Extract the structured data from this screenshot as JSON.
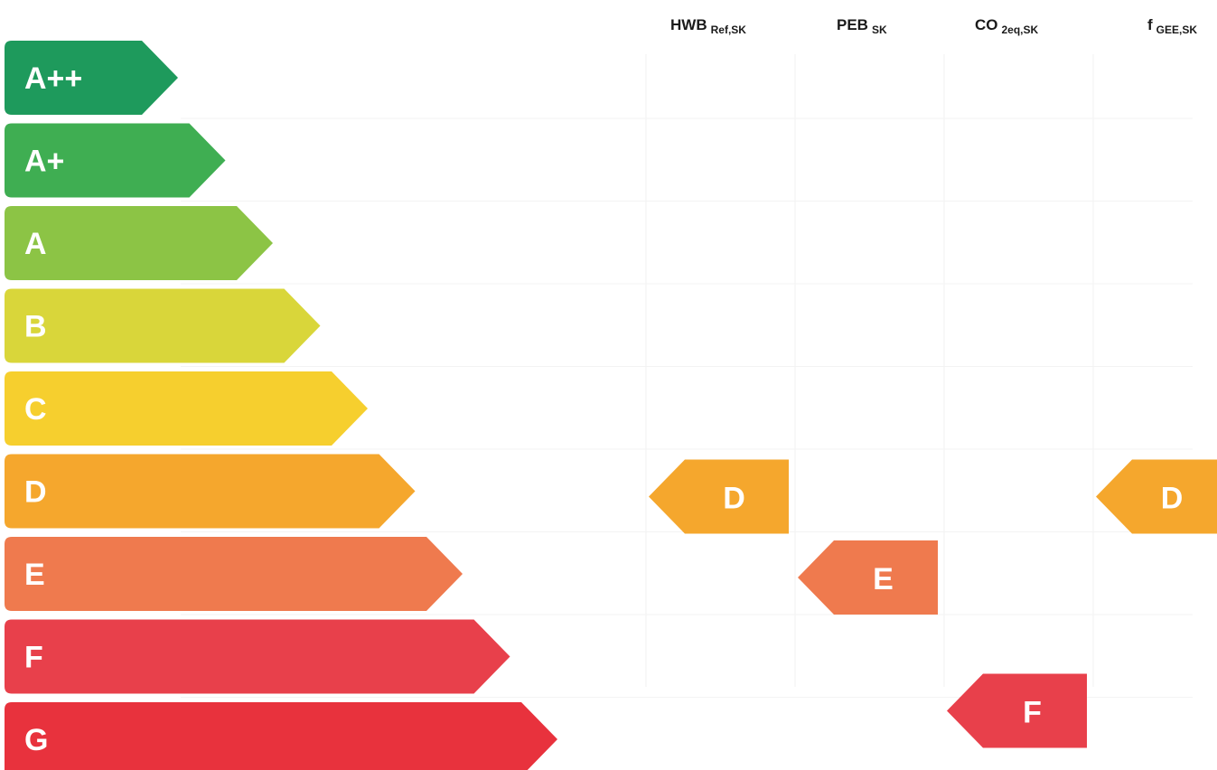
{
  "chart_data": {
    "type": "bar",
    "title": "",
    "categories": [
      "A++",
      "A+",
      "A",
      "B",
      "C",
      "D",
      "E",
      "F",
      "G"
    ],
    "category_colors": [
      "#1e9a5c",
      "#3fae52",
      "#8cc445",
      "#d9d63a",
      "#f6cf2e",
      "#f5a72d",
      "#ef7a4e",
      "#e8404b",
      "#e8323d"
    ],
    "indicators": [
      {
        "label": "HWB",
        "subscript": "Ref,SK",
        "rating": "D",
        "color": "#f5a72d"
      },
      {
        "label": "PEB",
        "subscript": "SK",
        "rating": "E",
        "color": "#ef7a4e"
      },
      {
        "label": "CO",
        "subscript": "2eq,SK",
        "rating": "F",
        "color": "#e8404b"
      },
      {
        "label": "f",
        "subscript": "GEE,SK",
        "rating": "D",
        "color": "#f5a72d"
      }
    ],
    "gridlines": true
  }
}
